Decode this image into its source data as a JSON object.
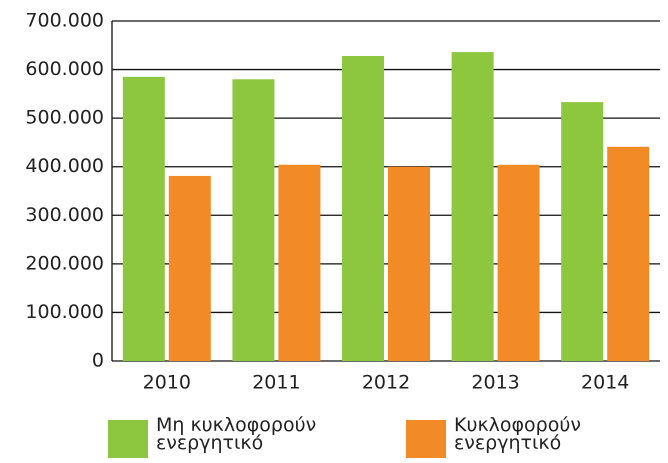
{
  "chart_data": {
    "type": "bar",
    "categories": [
      "2010",
      "2011",
      "2012",
      "2013",
      "2014"
    ],
    "series": [
      {
        "name": "Μη κυκλοφορούν ενεργητικό",
        "color": "#8dc63f",
        "values": [
          585000,
          580000,
          628000,
          636000,
          533000
        ]
      },
      {
        "name": "Κυκλοφορούν ενεργητικό",
        "color": "#f28a26",
        "values": [
          381000,
          404000,
          400000,
          404000,
          441000
        ]
      }
    ],
    "ylim": [
      0,
      700000
    ],
    "yticks": [
      0,
      {
        "value": 100000,
        "label": "100.000"
      },
      {
        "value": 200000,
        "label": "200.000"
      },
      {
        "value": 300000,
        "label": "300.000"
      },
      {
        "value": 400000,
        "label": "400.000"
      },
      {
        "value": 500000,
        "label": "500.000"
      },
      {
        "value": 600000,
        "label": "600.000"
      },
      {
        "value": 700000,
        "label": "700.000"
      }
    ],
    "grid": true,
    "legend": "bottom"
  }
}
